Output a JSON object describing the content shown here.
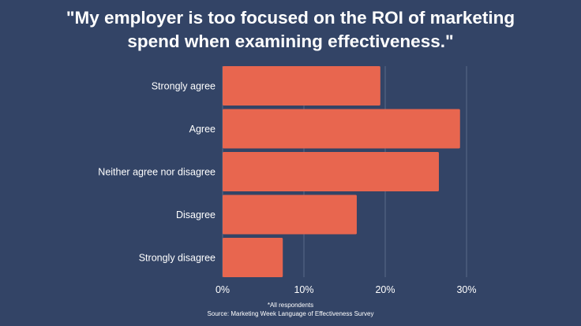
{
  "chart_data": {
    "type": "bar",
    "orientation": "horizontal",
    "title_line1": "\"My employer is too focused on the ROI of marketing",
    "title_line2": "spend when examining effectiveness.\"",
    "categories": [
      "Strongly agree",
      "Agree",
      "Neither agree nor disagree",
      "Disagree",
      "Strongly disagree"
    ],
    "values": [
      19.4,
      29.2,
      26.6,
      16.5,
      7.4
    ],
    "unit": "%",
    "xlim": [
      0,
      30
    ],
    "xticks": [
      0,
      10,
      20,
      30
    ],
    "xtick_labels": [
      "0%",
      "10%",
      "20%",
      "30%"
    ],
    "grid": "vertical",
    "legend": "none"
  },
  "footnote": {
    "line1": "*All respondents",
    "line2": "Source: Marketing Week Language of Effectiveness Survey"
  },
  "colors": {
    "background": "#334466",
    "bar": "#e8664f",
    "text": "#ffffff",
    "grid": "#5a6a88"
  }
}
